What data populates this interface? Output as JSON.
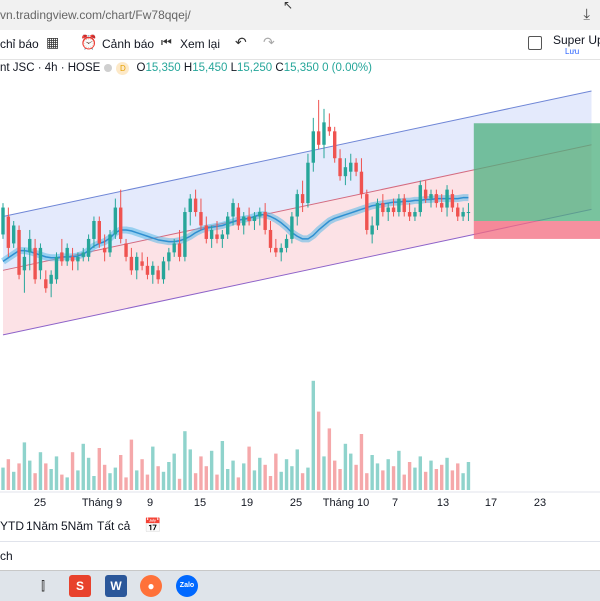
{
  "browser": {
    "url": "vn.tradingview.com/chart/Fw78qqej/",
    "download_icon": "download-icon"
  },
  "toolbar": {
    "alerts_label": "chỉ báo",
    "alert_label": "Cảnh báo",
    "replay_label": "Xem lại",
    "super_label": "Super Upt",
    "save_label": "Lưu"
  },
  "legend": {
    "symbol": "nt JSC · 4h · HOSE",
    "badge": "D",
    "o_label": "O",
    "o": "15,350",
    "h_label": "H",
    "h": "15,450",
    "l_label": "L",
    "l": "15,250",
    "c_label": "C",
    "c": "15,350",
    "change": "0 (0.00%)"
  },
  "timeaxis": {
    "labels": [
      "25",
      "Tháng 9",
      "9",
      "15",
      "19",
      "25",
      "Tháng 10",
      "7",
      "13",
      "17",
      "23"
    ]
  },
  "ranges": {
    "items": [
      "YTD",
      "1Năm",
      "5Năm",
      "Tất cả"
    ]
  },
  "footer": {
    "text": "ch"
  },
  "colors": {
    "up": "#26a69a",
    "down": "#ef5350",
    "channel_fill_top": "#dfe6fb",
    "channel_fill_bottom": "#fbdde2",
    "ma": "#57b8e6"
  },
  "chart_data": {
    "type": "candlestick",
    "candles": [
      [
        15.1,
        15.45,
        15.05,
        15.4
      ],
      [
        15.3,
        15.4,
        14.85,
        14.95
      ],
      [
        15.0,
        15.25,
        14.95,
        15.2
      ],
      [
        15.15,
        15.2,
        14.6,
        14.65
      ],
      [
        14.7,
        14.95,
        14.45,
        14.85
      ],
      [
        14.9,
        15.15,
        14.7,
        15.05
      ],
      [
        14.95,
        15.05,
        14.55,
        14.6
      ],
      [
        14.7,
        15.0,
        14.6,
        14.95
      ],
      [
        14.6,
        14.7,
        14.45,
        14.5
      ],
      [
        14.55,
        14.7,
        14.4,
        14.65
      ],
      [
        14.6,
        14.9,
        14.55,
        14.85
      ],
      [
        14.9,
        15.05,
        14.75,
        14.8
      ],
      [
        14.8,
        15.0,
        14.75,
        14.95
      ],
      [
        14.85,
        14.95,
        14.7,
        14.8
      ],
      [
        14.8,
        14.9,
        14.7,
        14.85
      ],
      [
        14.85,
        14.95,
        14.8,
        14.9
      ],
      [
        14.85,
        15.1,
        14.8,
        15.05
      ],
      [
        15.05,
        15.3,
        14.95,
        15.25
      ],
      [
        15.25,
        15.3,
        14.95,
        15.0
      ],
      [
        14.95,
        15.1,
        14.8,
        14.9
      ],
      [
        14.9,
        15.15,
        14.85,
        15.1
      ],
      [
        15.1,
        15.5,
        15.05,
        15.4
      ],
      [
        15.4,
        15.6,
        15.0,
        15.05
      ],
      [
        15.0,
        15.05,
        14.8,
        14.85
      ],
      [
        14.85,
        14.95,
        14.65,
        14.7
      ],
      [
        14.7,
        14.9,
        14.6,
        14.85
      ],
      [
        14.8,
        14.9,
        14.7,
        14.75
      ],
      [
        14.75,
        14.85,
        14.6,
        14.65
      ],
      [
        14.65,
        14.8,
        14.55,
        14.75
      ],
      [
        14.7,
        14.75,
        14.55,
        14.6
      ],
      [
        14.6,
        14.85,
        14.55,
        14.8
      ],
      [
        14.8,
        14.95,
        14.7,
        14.9
      ],
      [
        14.9,
        15.05,
        14.85,
        15.0
      ],
      [
        15.0,
        15.15,
        14.8,
        14.85
      ],
      [
        14.85,
        15.4,
        14.8,
        15.35
      ],
      [
        15.35,
        15.55,
        15.2,
        15.5
      ],
      [
        15.5,
        15.6,
        15.3,
        15.35
      ],
      [
        15.35,
        15.5,
        15.15,
        15.2
      ],
      [
        15.2,
        15.3,
        15.0,
        15.05
      ],
      [
        15.05,
        15.2,
        14.95,
        15.15
      ],
      [
        15.1,
        15.25,
        15.0,
        15.05
      ],
      [
        15.05,
        15.15,
        14.95,
        15.1
      ],
      [
        15.1,
        15.35,
        15.05,
        15.3
      ],
      [
        15.3,
        15.5,
        15.2,
        15.45
      ],
      [
        15.4,
        15.45,
        15.15,
        15.2
      ],
      [
        15.2,
        15.35,
        15.1,
        15.3
      ],
      [
        15.3,
        15.4,
        15.2,
        15.25
      ],
      [
        15.25,
        15.35,
        15.15,
        15.3
      ],
      [
        15.3,
        15.4,
        15.2,
        15.35
      ],
      [
        15.35,
        15.45,
        15.1,
        15.15
      ],
      [
        15.15,
        15.25,
        14.9,
        14.95
      ],
      [
        14.95,
        15.05,
        14.85,
        14.9
      ],
      [
        14.9,
        15.0,
        14.8,
        14.95
      ],
      [
        14.95,
        15.1,
        14.9,
        15.05
      ],
      [
        15.05,
        15.35,
        15.0,
        15.3
      ],
      [
        15.3,
        15.6,
        15.2,
        15.55
      ],
      [
        15.55,
        15.7,
        15.35,
        15.45
      ],
      [
        15.45,
        16.0,
        15.4,
        15.9
      ],
      [
        15.9,
        16.4,
        15.8,
        16.25
      ],
      [
        16.25,
        16.6,
        16.05,
        16.1
      ],
      [
        16.1,
        16.5,
        15.95,
        16.35
      ],
      [
        16.3,
        16.45,
        16.2,
        16.25
      ],
      [
        16.25,
        16.3,
        15.9,
        15.95
      ],
      [
        15.95,
        16.05,
        15.7,
        15.75
      ],
      [
        15.75,
        15.95,
        15.65,
        15.85
      ],
      [
        15.8,
        16.0,
        15.7,
        15.9
      ],
      [
        15.9,
        15.95,
        15.75,
        15.8
      ],
      [
        15.8,
        15.95,
        15.5,
        15.55
      ],
      [
        15.55,
        15.6,
        15.1,
        15.15
      ],
      [
        15.1,
        15.3,
        15.0,
        15.2
      ],
      [
        15.2,
        15.5,
        15.15,
        15.45
      ],
      [
        15.45,
        15.55,
        15.3,
        15.35
      ],
      [
        15.35,
        15.45,
        15.25,
        15.4
      ],
      [
        15.4,
        15.5,
        15.3,
        15.35
      ],
      [
        15.35,
        15.55,
        15.3,
        15.5
      ],
      [
        15.5,
        15.55,
        15.3,
        15.35
      ],
      [
        15.35,
        15.45,
        15.25,
        15.3
      ],
      [
        15.3,
        15.4,
        15.25,
        15.35
      ],
      [
        15.35,
        15.7,
        15.3,
        15.65
      ],
      [
        15.6,
        15.7,
        15.45,
        15.5
      ],
      [
        15.5,
        15.6,
        15.4,
        15.55
      ],
      [
        15.55,
        15.6,
        15.4,
        15.45
      ],
      [
        15.45,
        15.55,
        15.35,
        15.4
      ],
      [
        15.4,
        15.65,
        15.3,
        15.6
      ],
      [
        15.55,
        15.6,
        15.35,
        15.4
      ],
      [
        15.4,
        15.45,
        15.25,
        15.3
      ],
      [
        15.3,
        15.4,
        15.25,
        15.35
      ],
      [
        15.35,
        15.45,
        15.25,
        15.35
      ]
    ],
    "volume": [
      16,
      22,
      13,
      19,
      34,
      21,
      12,
      27,
      19,
      15,
      24,
      11,
      9,
      27,
      14,
      33,
      23,
      10,
      30,
      18,
      12,
      16,
      25,
      9,
      36,
      14,
      22,
      11,
      31,
      17,
      13,
      20,
      26,
      8,
      42,
      29,
      12,
      24,
      17,
      28,
      11,
      35,
      15,
      21,
      9,
      19,
      31,
      14,
      23,
      18,
      10,
      26,
      13,
      22,
      17,
      29,
      12,
      16,
      78,
      56,
      24,
      44,
      21,
      15,
      33,
      26,
      18,
      40,
      12,
      25,
      19,
      14,
      22,
      17,
      28,
      11,
      20,
      16,
      24,
      13,
      21,
      15,
      18,
      23,
      14,
      19,
      12,
      20
    ],
    "ma": [
      14.8,
      14.84,
      14.88,
      14.92,
      14.92,
      14.91,
      14.89,
      14.87,
      14.85,
      14.84,
      14.84,
      14.85,
      14.85,
      14.85,
      14.86,
      14.88,
      14.92,
      14.97,
      15.0,
      15.02,
      15.06,
      15.12,
      15.15,
      15.15,
      15.14,
      15.12,
      15.1,
      15.08,
      15.06,
      15.04,
      15.03,
      15.02,
      15.02,
      15.03,
      15.05,
      15.08,
      15.12,
      15.15,
      15.17,
      15.18,
      15.19,
      15.2,
      15.22,
      15.24,
      15.26,
      15.27,
      15.28,
      15.3,
      15.32,
      15.32,
      15.3,
      15.27,
      15.23,
      15.18,
      15.12,
      15.08,
      15.05,
      15.05,
      15.09,
      15.15,
      15.2,
      15.25,
      15.28,
      15.3,
      15.32,
      15.34,
      15.36,
      15.38,
      15.4,
      15.42,
      15.43,
      15.44,
      15.45,
      15.46,
      15.46,
      15.47,
      15.47,
      15.48,
      15.48,
      15.49,
      15.49,
      15.5,
      15.5,
      15.5,
      15.5,
      15.5,
      15.51,
      15.51
    ],
    "channel": {
      "upper": [
        [
          0,
          15.3
        ],
        [
          88,
          16.42
        ],
        [
          110,
          16.7
        ]
      ],
      "middle": [
        [
          0,
          14.7
        ],
        [
          88,
          15.82
        ],
        [
          110,
          16.1
        ]
      ],
      "lower": [
        [
          0,
          13.98
        ],
        [
          88,
          15.1
        ],
        [
          110,
          15.38
        ]
      ]
    },
    "position": {
      "entry": 15.25,
      "target": 16.34,
      "stop": 15.05,
      "start": 88
    },
    "price_range": [
      13.7,
      16.8
    ]
  }
}
